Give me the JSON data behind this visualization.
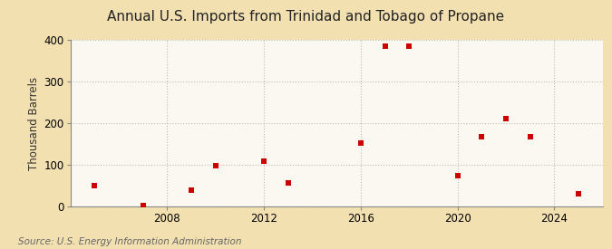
{
  "title": "Annual U.S. Imports from Trinidad and Tobago of Propane",
  "ylabel": "Thousand Barrels",
  "source": "Source: U.S. Energy Information Administration",
  "years": [
    2005,
    2007,
    2009,
    2010,
    2012,
    2013,
    2016,
    2017,
    2018,
    2020,
    2021,
    2022,
    2023,
    2025
  ],
  "values": [
    50,
    2,
    40,
    98,
    110,
    57,
    152,
    385,
    385,
    75,
    168,
    212,
    168,
    30
  ],
  "marker_color": "#cc0000",
  "marker": "s",
  "marker_size": 4,
  "xlim": [
    2004,
    2026
  ],
  "ylim": [
    0,
    400
  ],
  "yticks": [
    0,
    100,
    200,
    300,
    400
  ],
  "xticks": [
    2008,
    2012,
    2016,
    2020,
    2024
  ],
  "background_color": "#f2e0b0",
  "plot_bg_color": "#faf8f0",
  "grid_color": "#bbbbbb",
  "title_fontsize": 11,
  "axis_fontsize": 8.5,
  "source_fontsize": 7.5
}
